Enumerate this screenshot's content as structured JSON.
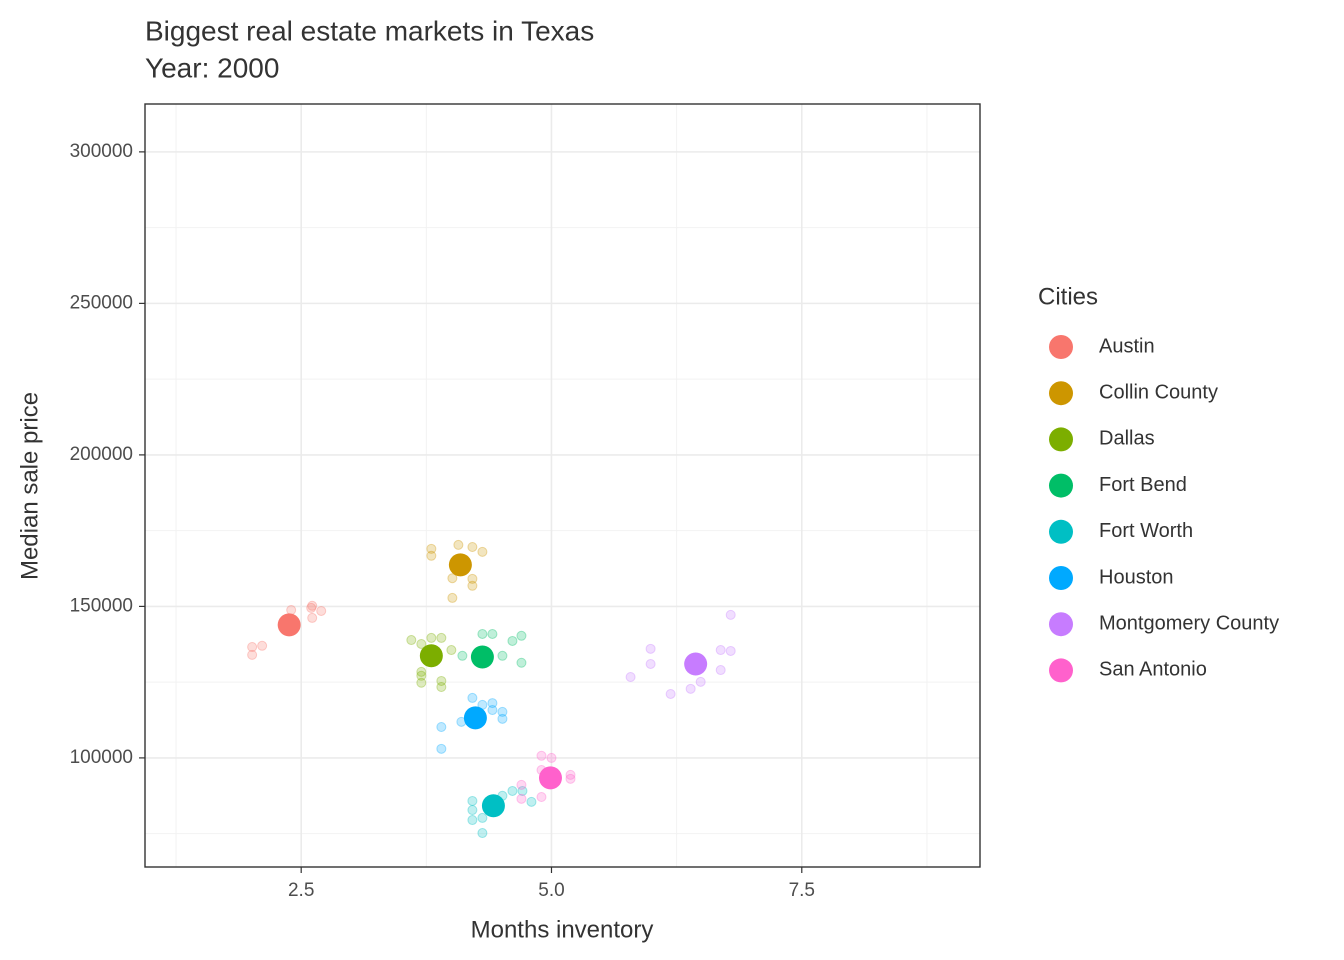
{
  "chart_data": {
    "type": "scatter",
    "title": "Biggest real estate markets in Texas",
    "subtitle": "Year: 2000",
    "x_label": "Months inventory",
    "y_label": "Median sale price",
    "legend_title": "Cities",
    "legend": "right",
    "grid": true,
    "xlim": [
      0.94,
      9.28
    ],
    "ylim": [
      64000,
      315800
    ],
    "xticks": [
      2.5,
      {
        "value": 5,
        "label": "5.0"
      },
      7.5
    ],
    "yticks": [
      100000,
      150000,
      200000,
      250000,
      300000
    ],
    "series": [
      {
        "name": "Austin",
        "color": "#F8766D",
        "mean_x": 2.38,
        "mean_y": 143900,
        "x": [
          2.01,
          2.01,
          2.11,
          2.4,
          2.61,
          2.61,
          2.7,
          2.6
        ],
        "y": [
          136600,
          134000,
          137000,
          148800,
          150200,
          146200,
          148500,
          149500
        ]
      },
      {
        "name": "Collin County",
        "color": "#CD9600",
        "mean_x": 4.09,
        "mean_y": 163700,
        "x": [
          3.8,
          3.8,
          4.07,
          4.21,
          4.31,
          4.01,
          4.21,
          4.21,
          4.01
        ],
        "y": [
          169000,
          166700,
          170300,
          169600,
          168000,
          152800,
          159100,
          156800,
          159300
        ]
      },
      {
        "name": "Dallas",
        "color": "#7CAE00",
        "mean_x": 3.8,
        "mean_y": 133700,
        "x": [
          3.6,
          3.7,
          3.8,
          3.9,
          3.7,
          3.7,
          3.9,
          3.9,
          4.0,
          3.7
        ],
        "y": [
          138900,
          137600,
          139600,
          139600,
          124800,
          128400,
          123400,
          125400,
          135600,
          127100
        ]
      },
      {
        "name": "Fort Bend",
        "color": "#00BE67",
        "mean_x": 4.31,
        "mean_y": 133300,
        "x": [
          4.31,
          4.41,
          4.61,
          4.7,
          4.51,
          4.7,
          4.11
        ],
        "y": [
          140900,
          140900,
          138600,
          140300,
          133700,
          131400,
          133700
        ]
      },
      {
        "name": "Fort Worth",
        "color": "#00BFC4",
        "mean_x": 4.42,
        "mean_y": 84200,
        "x": [
          4.21,
          4.21,
          4.21,
          4.31,
          4.31,
          4.51,
          4.61,
          4.71,
          4.8
        ],
        "y": [
          85800,
          82800,
          79500,
          75200,
          80200,
          87500,
          89100,
          89100,
          85500
        ]
      },
      {
        "name": "Houston",
        "color": "#00A9FF",
        "mean_x": 4.24,
        "mean_y": 113200,
        "x": [
          4.21,
          4.31,
          4.41,
          4.51,
          4.51,
          4.1,
          3.9,
          3.9,
          4.41
        ],
        "y": [
          119800,
          117500,
          118100,
          115200,
          112900,
          111900,
          110200,
          103000,
          115800
        ]
      },
      {
        "name": "Montgomery County",
        "color": "#C77CFF",
        "mean_x": 6.44,
        "mean_y": 131000,
        "x": [
          5.79,
          5.99,
          5.99,
          6.19,
          6.39,
          6.49,
          6.69,
          6.79,
          6.69,
          6.79
        ],
        "y": [
          126700,
          136000,
          131000,
          121100,
          122800,
          125100,
          135600,
          135300,
          129000,
          147200
        ]
      },
      {
        "name": "San Antonio",
        "color": "#FF61CC",
        "mean_x": 4.99,
        "mean_y": 93400,
        "x": [
          4.9,
          5.0,
          4.9,
          4.7,
          4.7,
          4.9,
          5.19,
          5.19
        ],
        "y": [
          100700,
          100000,
          96000,
          91100,
          86500,
          87100,
          94400,
          93100
        ]
      }
    ]
  }
}
